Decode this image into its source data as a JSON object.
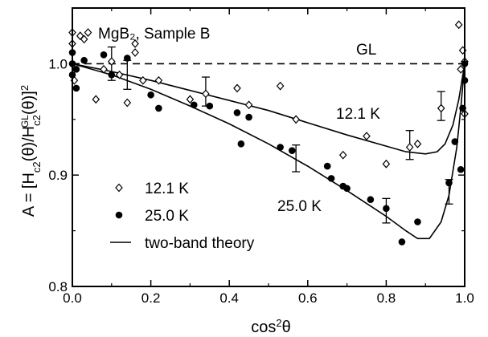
{
  "chart_data": {
    "type": "scatter",
    "title": "",
    "sample_label": "MgB₂, Sample B",
    "xlabel": "cos²θ",
    "ylabel": "A = [Hᶜ₂(θ)/Hᶜ₂ᴳᴸ(θ)]²",
    "ylabel_parts": {
      "prefix": "A = [H",
      "s1": "c2",
      "mid": "(θ)/H",
      "s2": "c2",
      "sup": "GL",
      "suffix": "(θ)]",
      "exp": "2"
    },
    "xlabel_parts": {
      "base": "cos",
      "exp": "2",
      "var": "θ"
    },
    "xlim": [
      0.0,
      1.0
    ],
    "ylim": [
      0.8,
      1.05
    ],
    "xticks": [
      "0.0",
      "0.2",
      "0.4",
      "0.6",
      "0.8",
      "1.0"
    ],
    "yticks": [
      "0.8",
      "0.9",
      "1.0"
    ],
    "reference_line": {
      "label": "GL",
      "y": 1.0,
      "style": "dashed"
    },
    "annotations": [
      "12.1 K",
      "25.0 K"
    ],
    "legend": {
      "placement": "bottom-left",
      "entries": [
        "12.1 K",
        "25.0 K",
        "two-band theory"
      ]
    },
    "series": [
      {
        "name": "12.1 K",
        "marker": "open-diamond",
        "points": [
          [
            0.0,
            1.028
          ],
          [
            0.0,
            1.018
          ],
          [
            0.005,
            0.985
          ],
          [
            0.02,
            1.025
          ],
          [
            0.03,
            1.022
          ],
          [
            0.04,
            1.028
          ],
          [
            0.06,
            0.968
          ],
          [
            0.08,
            0.995
          ],
          [
            0.1,
            1.002
          ],
          [
            0.12,
            0.99
          ],
          [
            0.14,
            0.965
          ],
          [
            0.16,
            1.018
          ],
          [
            0.16,
            1.01
          ],
          [
            0.18,
            0.985
          ],
          [
            0.22,
            0.985
          ],
          [
            0.3,
            0.968
          ],
          [
            0.34,
            0.973
          ],
          [
            0.42,
            0.978
          ],
          [
            0.45,
            0.963
          ],
          [
            0.53,
            0.98
          ],
          [
            0.57,
            0.95
          ],
          [
            0.69,
            0.918
          ],
          [
            0.75,
            0.935
          ],
          [
            0.8,
            0.91
          ],
          [
            0.86,
            0.925
          ],
          [
            0.88,
            0.928
          ],
          [
            0.94,
            0.96
          ],
          [
            0.985,
            1.035
          ],
          [
            0.99,
            0.995
          ],
          [
            0.995,
            1.012
          ],
          [
            1.0,
            0.955
          ],
          [
            1.0,
            1.002
          ]
        ],
        "error_bars": [
          {
            "x": 0.1,
            "y": 1.0,
            "err": 0.015
          },
          {
            "x": 0.34,
            "y": 0.975,
            "err": 0.013
          },
          {
            "x": 0.86,
            "y": 0.927,
            "err": 0.013
          },
          {
            "x": 0.94,
            "y": 0.962,
            "err": 0.013
          }
        ]
      },
      {
        "name": "25.0 K",
        "marker": "filled-circle",
        "points": [
          [
            0.0,
            1.01
          ],
          [
            0.0,
            0.99
          ],
          [
            0.0,
            1.0
          ],
          [
            0.01,
            0.978
          ],
          [
            0.01,
            0.995
          ],
          [
            0.03,
            1.003
          ],
          [
            0.08,
            1.008
          ],
          [
            0.1,
            0.99
          ],
          [
            0.14,
            1.005
          ],
          [
            0.2,
            0.972
          ],
          [
            0.22,
            0.96
          ],
          [
            0.31,
            0.963
          ],
          [
            0.35,
            0.962
          ],
          [
            0.42,
            0.956
          ],
          [
            0.43,
            0.928
          ],
          [
            0.45,
            0.952
          ],
          [
            0.53,
            0.925
          ],
          [
            0.56,
            0.922
          ],
          [
            0.65,
            0.908
          ],
          [
            0.66,
            0.897
          ],
          [
            0.69,
            0.89
          ],
          [
            0.7,
            0.888
          ],
          [
            0.76,
            0.878
          ],
          [
            0.8,
            0.87
          ],
          [
            0.84,
            0.84
          ],
          [
            0.88,
            0.858
          ],
          [
            0.96,
            0.893
          ],
          [
            0.975,
            0.93
          ],
          [
            0.99,
            0.905
          ],
          [
            0.995,
            0.96
          ],
          [
            1.0,
            0.985
          ],
          [
            1.0,
            1.0
          ]
        ],
        "error_bars": [
          {
            "x": 0.14,
            "y": 0.99,
            "err": 0.013
          },
          {
            "x": 0.57,
            "y": 0.915,
            "err": 0.012
          },
          {
            "x": 0.8,
            "y": 0.868,
            "err": 0.011
          },
          {
            "x": 0.96,
            "y": 0.885,
            "err": 0.011
          }
        ]
      }
    ],
    "curves": [
      {
        "name": "two-band theory (12.1 K)",
        "points": [
          [
            0.0,
            1.0
          ],
          [
            0.1,
            0.993
          ],
          [
            0.2,
            0.985
          ],
          [
            0.3,
            0.976
          ],
          [
            0.4,
            0.967
          ],
          [
            0.5,
            0.958
          ],
          [
            0.6,
            0.947
          ],
          [
            0.7,
            0.936
          ],
          [
            0.8,
            0.926
          ],
          [
            0.85,
            0.921
          ],
          [
            0.9,
            0.919
          ],
          [
            0.93,
            0.921
          ],
          [
            0.95,
            0.928
          ],
          [
            0.97,
            0.945
          ],
          [
            0.985,
            0.968
          ],
          [
            0.993,
            0.985
          ],
          [
            1.0,
            1.0
          ]
        ]
      },
      {
        "name": "two-band theory (25.0 K)",
        "points": [
          [
            0.0,
            1.0
          ],
          [
            0.1,
            0.99
          ],
          [
            0.2,
            0.977
          ],
          [
            0.3,
            0.962
          ],
          [
            0.4,
            0.946
          ],
          [
            0.5,
            0.928
          ],
          [
            0.6,
            0.908
          ],
          [
            0.7,
            0.886
          ],
          [
            0.8,
            0.863
          ],
          [
            0.85,
            0.85
          ],
          [
            0.88,
            0.843
          ],
          [
            0.91,
            0.843
          ],
          [
            0.94,
            0.858
          ],
          [
            0.96,
            0.882
          ],
          [
            0.98,
            0.925
          ],
          [
            0.99,
            0.96
          ],
          [
            1.0,
            1.0
          ]
        ]
      }
    ]
  }
}
